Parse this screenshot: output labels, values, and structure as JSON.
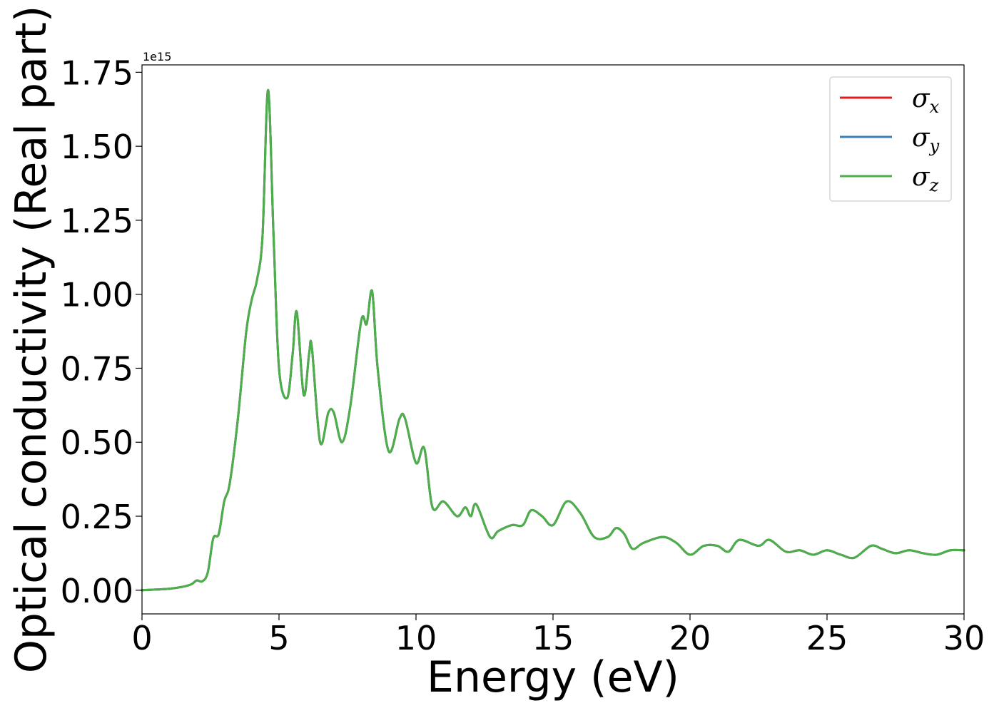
{
  "chart_data": {
    "type": "line",
    "title": "",
    "xlabel": "Energy (eV)",
    "ylabel": "Optical conductivity (Real part)",
    "y_offset_label": "1e15",
    "xlim": [
      0,
      30
    ],
    "ylim": [
      -0.08,
      1.775
    ],
    "xticks": [
      0,
      5,
      10,
      15,
      20,
      25,
      30
    ],
    "xtick_labels": [
      "0",
      "5",
      "10",
      "15",
      "20",
      "25",
      "30"
    ],
    "yticks": [
      0,
      0.25,
      0.5,
      0.75,
      1.0,
      1.25,
      1.5,
      1.75
    ],
    "ytick_labels": [
      "0.00",
      "0.25",
      "0.50",
      "0.75",
      "1.00",
      "1.25",
      "1.50",
      "1.75"
    ],
    "grid": false,
    "legend_position": "top-right",
    "series": [
      {
        "name": "σx",
        "symbol": "σ",
        "subscript": "x",
        "color": "#e41a1c"
      },
      {
        "name": "σy",
        "symbol": "σ",
        "subscript": "y",
        "color": "#377eb8"
      },
      {
        "name": "σz",
        "symbol": "σ",
        "subscript": "z",
        "color": "#4daf4a"
      }
    ],
    "x": [
      0,
      1.0,
      1.5,
      1.8,
      2.0,
      2.2,
      2.4,
      2.6,
      2.8,
      3.0,
      3.2,
      3.5,
      3.8,
      4.0,
      4.2,
      4.4,
      4.6,
      4.8,
      5.0,
      5.3,
      5.5,
      5.65,
      5.9,
      6.1,
      6.2,
      6.5,
      6.8,
      7.0,
      7.3,
      7.6,
      8.0,
      8.2,
      8.4,
      8.6,
      9.0,
      9.4,
      9.6,
      10.0,
      10.3,
      10.6,
      11.0,
      11.5,
      11.8,
      12.0,
      12.2,
      12.7,
      13.0,
      13.5,
      13.9,
      14.2,
      14.6,
      15.0,
      15.5,
      16.0,
      16.5,
      17.0,
      17.3,
      17.6,
      17.9,
      18.3,
      19.0,
      19.5,
      20.0,
      20.5,
      21.0,
      21.4,
      21.8,
      22.5,
      22.9,
      23.5,
      24.0,
      24.5,
      25.0,
      25.5,
      26.0,
      26.6,
      27.0,
      27.5,
      28.0,
      28.5,
      29.0,
      29.5,
      30.0
    ],
    "y": [
      0.0,
      0.005,
      0.012,
      0.02,
      0.033,
      0.03,
      0.06,
      0.175,
      0.19,
      0.3,
      0.36,
      0.58,
      0.87,
      0.98,
      1.05,
      1.2,
      1.69,
      1.2,
      0.75,
      0.65,
      0.8,
      0.94,
      0.66,
      0.8,
      0.82,
      0.5,
      0.6,
      0.6,
      0.5,
      0.62,
      0.91,
      0.9,
      1.01,
      0.75,
      0.47,
      0.58,
      0.58,
      0.43,
      0.48,
      0.28,
      0.3,
      0.25,
      0.28,
      0.25,
      0.29,
      0.18,
      0.2,
      0.22,
      0.22,
      0.27,
      0.25,
      0.22,
      0.3,
      0.26,
      0.18,
      0.18,
      0.21,
      0.19,
      0.14,
      0.16,
      0.18,
      0.16,
      0.12,
      0.15,
      0.15,
      0.13,
      0.17,
      0.15,
      0.17,
      0.13,
      0.135,
      0.12,
      0.135,
      0.12,
      0.11,
      0.15,
      0.14,
      0.125,
      0.135,
      0.125,
      0.12,
      0.135,
      0.135
    ]
  }
}
